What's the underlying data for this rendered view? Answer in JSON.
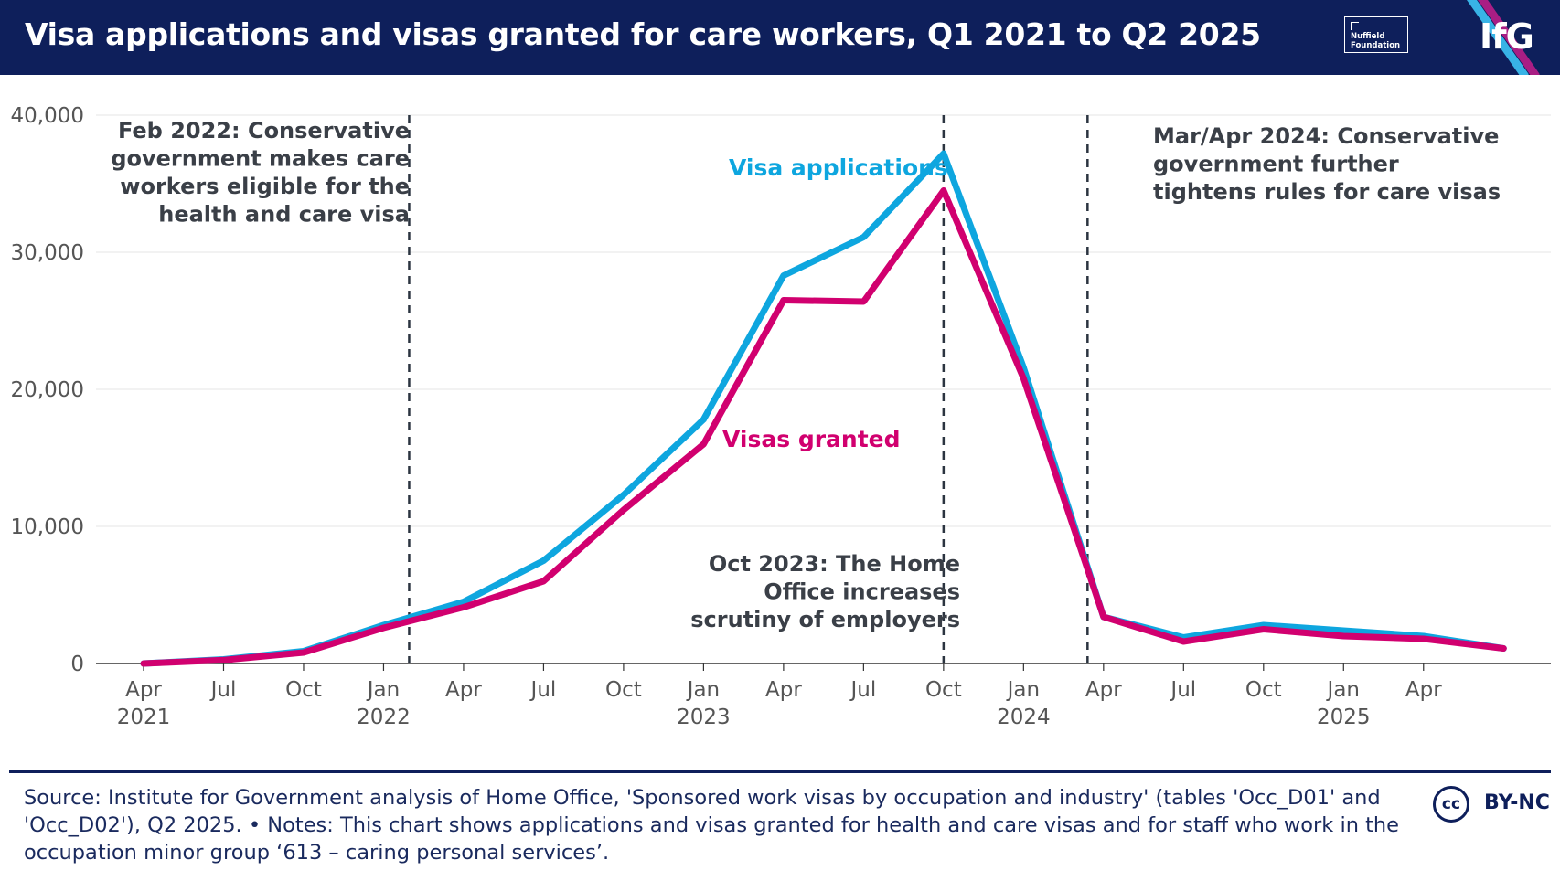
{
  "header": {
    "title": "Visa applications and visas granted for care workers, Q1 2021 to Q2 2025",
    "nuffield_line1": "Nuffield",
    "nuffield_line2": "Foundation",
    "ifg_logo": "IfG"
  },
  "chart_data": {
    "type": "line",
    "title": "Visa applications and visas granted for care workers, Q1 2021 to Q2 2025",
    "ylim": [
      0,
      40000
    ],
    "yticks": [
      0,
      10000,
      20000,
      30000,
      40000
    ],
    "ytick_labels": [
      "0",
      "10,000",
      "20,000",
      "30,000",
      "40,000"
    ],
    "xlim": [
      2021.25,
      2025.625
    ],
    "xticks": [
      {
        "x": 2021.25,
        "label": "Apr",
        "year": "2021"
      },
      {
        "x": 2021.5,
        "label": "Jul",
        "year": ""
      },
      {
        "x": 2021.75,
        "label": "Oct",
        "year": ""
      },
      {
        "x": 2022.0,
        "label": "Jan",
        "year": "2022"
      },
      {
        "x": 2022.25,
        "label": "Apr",
        "year": ""
      },
      {
        "x": 2022.5,
        "label": "Jul",
        "year": ""
      },
      {
        "x": 2022.75,
        "label": "Oct",
        "year": ""
      },
      {
        "x": 2023.0,
        "label": "Jan",
        "year": "2023"
      },
      {
        "x": 2023.25,
        "label": "Apr",
        "year": ""
      },
      {
        "x": 2023.5,
        "label": "Jul",
        "year": ""
      },
      {
        "x": 2023.75,
        "label": "Oct",
        "year": ""
      },
      {
        "x": 2024.0,
        "label": "Jan",
        "year": "2024"
      },
      {
        "x": 2024.25,
        "label": "Apr",
        "year": ""
      },
      {
        "x": 2024.5,
        "label": "Jul",
        "year": ""
      },
      {
        "x": 2024.75,
        "label": "Oct",
        "year": ""
      },
      {
        "x": 2025.0,
        "label": "Jan",
        "year": "2025"
      },
      {
        "x": 2025.25,
        "label": "Apr",
        "year": ""
      }
    ],
    "x": [
      2021.25,
      2021.5,
      2021.75,
      2022.0,
      2022.25,
      2022.5,
      2022.75,
      2023.0,
      2023.25,
      2023.5,
      2023.75,
      2024.0,
      2024.25,
      2024.5,
      2024.75,
      2025.0,
      2025.25,
      2025.5
    ],
    "series": [
      {
        "name": "Visa applications",
        "color": "#0ea6df",
        "values": [
          0,
          300,
          900,
          2800,
          4500,
          7500,
          12300,
          17800,
          28300,
          31100,
          37200,
          21600,
          3400,
          1900,
          2800,
          2400,
          2000,
          1100
        ]
      },
      {
        "name": "Visas granted",
        "color": "#d1006f",
        "values": [
          0,
          250,
          800,
          2600,
          4100,
          6000,
          11200,
          16000,
          26500,
          26400,
          34500,
          20800,
          3400,
          1600,
          2500,
          2000,
          1800,
          1100
        ]
      }
    ],
    "series_labels": {
      "applications": "Visa applications",
      "granted": "Visas granted"
    },
    "events": [
      {
        "x": 2022.08,
        "lines": [
          "Feb 2022: Conservative",
          "government makes care",
          "workers eligible for the",
          "health and care visa"
        ]
      },
      {
        "x": 2023.75,
        "lines": [
          "Oct 2023: The Home",
          "Office increases",
          "scrutiny of employers"
        ]
      },
      {
        "x": 2024.2,
        "lines": [
          "Mar/Apr 2024: Conservative",
          "government further",
          "tightens rules for care visas"
        ]
      }
    ]
  },
  "footer": {
    "source": "Source: Institute for Government analysis of Home Office, 'Sponsored work visas by occupation and industry' (tables 'Occ_D01' and 'Occ_D02'), Q2 2025. • Notes: This chart shows applications and visas granted for health and care visas and for staff who work in the occupation minor group ‘613 – caring personal services’.",
    "cc_mark": "cc",
    "license": "BY-NC"
  }
}
